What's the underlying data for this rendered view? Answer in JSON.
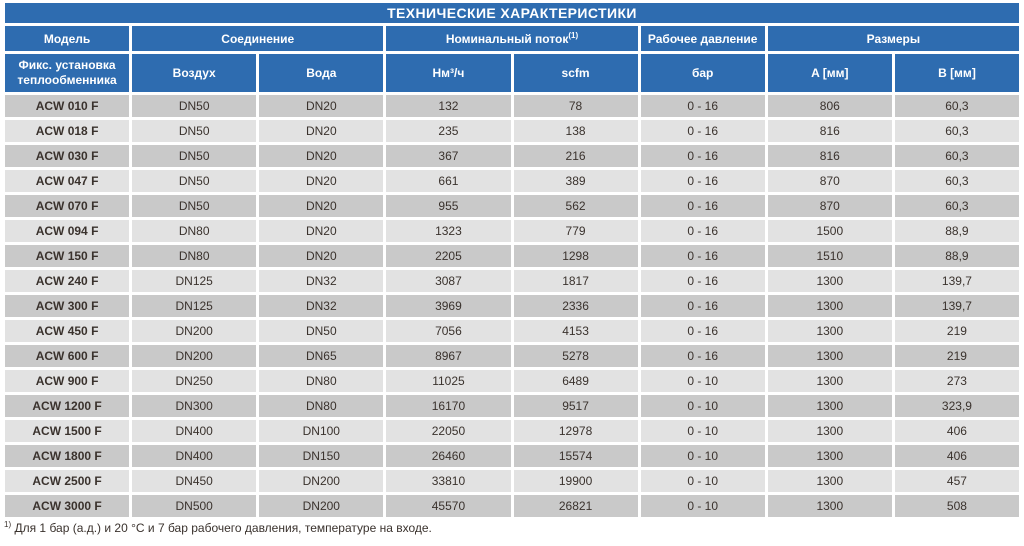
{
  "table": {
    "title": "ТЕХНИЧЕСКИЕ ХАРАКТЕРИСТИКИ",
    "groups": [
      {
        "label": "Модель"
      },
      {
        "label": "Соединение"
      },
      {
        "label": "Номинальный поток",
        "sup": "(1)"
      },
      {
        "label": "Рабочее давление"
      },
      {
        "label": "Размеры"
      }
    ],
    "subheaders": [
      "Фикс. установка теплообменника",
      "Воздух",
      "Вода",
      "Нм³/ч",
      "scfm",
      "бар",
      "A [мм]",
      "B [мм]"
    ],
    "rows": [
      [
        "ACW 010 F",
        "DN50",
        "DN20",
        "132",
        "78",
        "0 - 16",
        "806",
        "60,3"
      ],
      [
        "ACW 018 F",
        "DN50",
        "DN20",
        "235",
        "138",
        "0 - 16",
        "816",
        "60,3"
      ],
      [
        "ACW 030 F",
        "DN50",
        "DN20",
        "367",
        "216",
        "0 - 16",
        "816",
        "60,3"
      ],
      [
        "ACW 047 F",
        "DN50",
        "DN20",
        "661",
        "389",
        "0 - 16",
        "870",
        "60,3"
      ],
      [
        "ACW 070 F",
        "DN50",
        "DN20",
        "955",
        "562",
        "0 - 16",
        "870",
        "60,3"
      ],
      [
        "ACW 094 F",
        "DN80",
        "DN20",
        "1323",
        "779",
        "0 - 16",
        "1500",
        "88,9"
      ],
      [
        "ACW 150 F",
        "DN80",
        "DN20",
        "2205",
        "1298",
        "0 - 16",
        "1510",
        "88,9"
      ],
      [
        "ACW 240 F",
        "DN125",
        "DN32",
        "3087",
        "1817",
        "0 - 16",
        "1300",
        "139,7"
      ],
      [
        "ACW 300 F",
        "DN125",
        "DN32",
        "3969",
        "2336",
        "0 - 16",
        "1300",
        "139,7"
      ],
      [
        "ACW 450 F",
        "DN200",
        "DN50",
        "7056",
        "4153",
        "0 - 16",
        "1300",
        "219"
      ],
      [
        "ACW 600 F",
        "DN200",
        "DN65",
        "8967",
        "5278",
        "0 - 16",
        "1300",
        "219"
      ],
      [
        "ACW 900 F",
        "DN250",
        "DN80",
        "11025",
        "6489",
        "0 - 10",
        "1300",
        "273"
      ],
      [
        "ACW 1200 F",
        "DN300",
        "DN80",
        "16170",
        "9517",
        "0 - 10",
        "1300",
        "323,9"
      ],
      [
        "ACW 1500 F",
        "DN400",
        "DN100",
        "22050",
        "12978",
        "0 - 10",
        "1300",
        "406"
      ],
      [
        "ACW 1800 F",
        "DN400",
        "DN150",
        "26460",
        "15574",
        "0 - 10",
        "1300",
        "406"
      ],
      [
        "ACW 2500 F",
        "DN450",
        "DN200",
        "33810",
        "19900",
        "0 - 10",
        "1300",
        "457"
      ],
      [
        "ACW 3000 F",
        "DN500",
        "DN200",
        "45570",
        "26821",
        "0 - 10",
        "1300",
        "508"
      ]
    ]
  },
  "footnote": {
    "sup": "1)",
    "text": "Для 1 бар (а.д.) и 20 °C и 7 бар рабочего давления, температуре на входе."
  },
  "colors": {
    "header_blue": "#2e6cb0",
    "row_dark": "#c9c9c9",
    "row_light": "#e2e2e2",
    "text_dark": "#3a322d"
  }
}
